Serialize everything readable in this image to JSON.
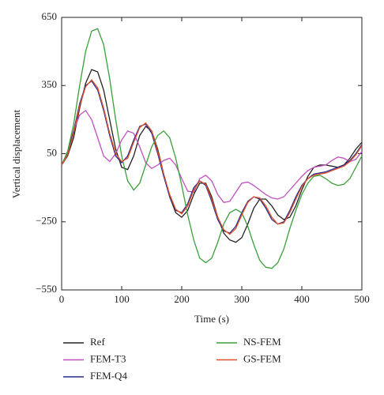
{
  "chart_data": {
    "type": "line",
    "xlabel": "Time (s)",
    "ylabel": "Vertical displacement",
    "x": [
      0,
      10,
      20,
      30,
      40,
      50,
      60,
      70,
      80,
      90,
      100,
      110,
      120,
      130,
      140,
      150,
      160,
      170,
      180,
      190,
      200,
      210,
      220,
      230,
      240,
      250,
      260,
      270,
      280,
      290,
      300,
      310,
      320,
      330,
      340,
      350,
      360,
      370,
      380,
      390,
      400,
      410,
      420,
      430,
      440,
      450,
      460,
      470,
      480,
      490,
      500
    ],
    "series": [
      {
        "name": "Ref",
        "color": "#222222",
        "values": [
          0,
          40,
          120,
          250,
          360,
          420,
          410,
          330,
          200,
          70,
          -10,
          -20,
          40,
          130,
          170,
          150,
          70,
          -40,
          -140,
          -210,
          -230,
          -200,
          -130,
          -80,
          -80,
          -140,
          -230,
          -300,
          -330,
          -340,
          -320,
          -260,
          -190,
          -150,
          -150,
          -180,
          -220,
          -240,
          -230,
          -180,
          -110,
          -50,
          -10,
          0,
          0,
          -5,
          -10,
          0,
          30,
          70,
          100
        ]
      },
      {
        "name": "FEM-T3",
        "color": "#c050c0",
        "values": [
          0,
          60,
          150,
          220,
          240,
          200,
          120,
          40,
          15,
          50,
          110,
          150,
          140,
          80,
          10,
          -15,
          0,
          20,
          30,
          0,
          -60,
          -115,
          -120,
          -60,
          -45,
          -70,
          -130,
          -165,
          -160,
          -120,
          -80,
          -75,
          -90,
          -110,
          -130,
          -145,
          -150,
          -140,
          -110,
          -80,
          -50,
          -25,
          -10,
          -5,
          0,
          20,
          35,
          30,
          15,
          25,
          60
        ]
      },
      {
        "name": "FEM-Q4",
        "color": "#2a2a8a",
        "values": [
          0,
          50,
          150,
          270,
          350,
          370,
          330,
          240,
          130,
          40,
          10,
          40,
          110,
          170,
          180,
          140,
          50,
          -50,
          -140,
          -200,
          -210,
          -170,
          -100,
          -70,
          -90,
          -160,
          -240,
          -290,
          -300,
          -270,
          -210,
          -160,
          -140,
          -150,
          -190,
          -240,
          -260,
          -250,
          -200,
          -140,
          -90,
          -60,
          -40,
          -35,
          -30,
          -20,
          -10,
          0,
          20,
          50,
          90
        ]
      },
      {
        "name": "NS-FEM",
        "color": "#3aa03a",
        "values": [
          0,
          60,
          180,
          350,
          500,
          590,
          600,
          530,
          380,
          200,
          40,
          -70,
          -110,
          -80,
          0,
          80,
          130,
          150,
          120,
          30,
          -90,
          -220,
          -330,
          -410,
          -430,
          -410,
          -340,
          -260,
          -210,
          -195,
          -210,
          -270,
          -350,
          -420,
          -450,
          -455,
          -430,
          -370,
          -280,
          -200,
          -130,
          -80,
          -50,
          -45,
          -60,
          -80,
          -90,
          -85,
          -60,
          -10,
          40
        ]
      },
      {
        "name": "GS-FEM",
        "color": "#e0502a",
        "values": [
          0,
          45,
          140,
          260,
          345,
          375,
          340,
          250,
          140,
          50,
          15,
          30,
          100,
          165,
          185,
          150,
          60,
          -40,
          -130,
          -195,
          -215,
          -180,
          -110,
          -70,
          -85,
          -150,
          -230,
          -285,
          -305,
          -280,
          -220,
          -165,
          -140,
          -145,
          -180,
          -230,
          -260,
          -255,
          -210,
          -150,
          -95,
          -60,
          -45,
          -40,
          -35,
          -25,
          -15,
          -5,
          15,
          45,
          85
        ]
      }
    ],
    "xlim": [
      0,
      500
    ],
    "xticks": [
      0,
      100,
      200,
      300,
      400,
      500
    ],
    "ylim": [
      -550,
      650
    ],
    "yticks": [
      {
        "value": -550,
        "label": "−550"
      },
      {
        "value": -250,
        "label": "−250"
      },
      50,
      350,
      650
    ],
    "grid": false,
    "legend": "below"
  }
}
